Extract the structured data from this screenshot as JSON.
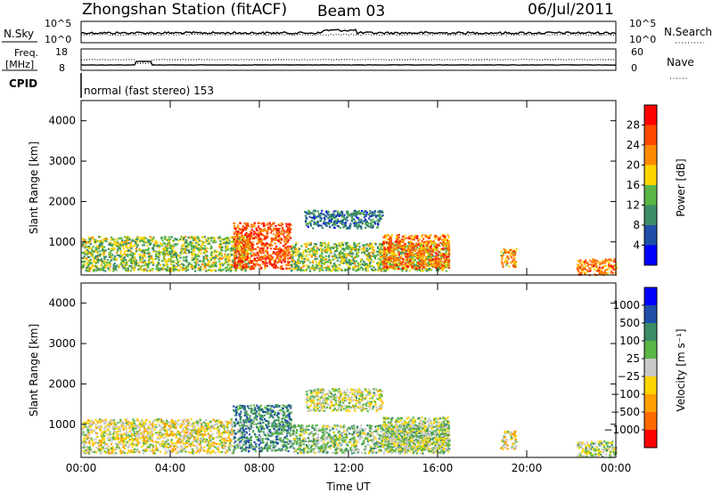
{
  "header": {
    "station": "Zhongshan Station (fitACF)",
    "beam": "Beam 03",
    "date": "06/Jul/2011"
  },
  "top_panels": {
    "nsky_label": "N.Sky",
    "nsky_ticks": [
      "10^5",
      "10^0"
    ],
    "nsearch_label": "N.Search",
    "nsearch_ticks": [
      "10^5",
      "10^0"
    ],
    "freq_label": "Freq.",
    "freq_unit": "[MHz]",
    "freq_ticks": [
      "18",
      "8"
    ],
    "nave_label": "Nave",
    "nave_ticks": [
      "60",
      "0"
    ],
    "cpid_label": "CPID",
    "cpid_text": "normal (fast stereo) 153"
  },
  "colors": {
    "power_scale": [
      "#0000ff",
      "#1f4fa8",
      "#3c8c68",
      "#5ab646",
      "#ffd400",
      "#ff8c00",
      "#ff4a00",
      "#ff0000"
    ],
    "velocity_scale": [
      "#ff0000",
      "#ff6a00",
      "#ffa000",
      "#ffd400",
      "#c8c8c8",
      "#5ab646",
      "#3c8c68",
      "#1f4fa8",
      "#0000ff"
    ]
  },
  "chart_data": [
    {
      "type": "heatmap",
      "name": "power",
      "ylabel": "Slant Range [km]",
      "yticks": [
        "4000",
        "3000",
        "2000",
        "1000"
      ],
      "xticks": [
        "00:00",
        "04:00",
        "08:00",
        "12:00",
        "16:00",
        "20:00",
        "00:00"
      ],
      "x_range_hours": [
        0,
        24
      ],
      "y_range_km": [
        180,
        4500
      ],
      "colorbar": {
        "label": "Power [dB]",
        "ticks": [
          "28",
          "24",
          "20",
          "16",
          "12",
          "8",
          "4"
        ],
        "range": [
          0,
          30
        ]
      },
      "echo_regions": [
        {
          "t_start": 0.0,
          "t_end": 7.6,
          "r_min": 300,
          "r_max": 1150,
          "level": 14
        },
        {
          "t_start": 6.8,
          "t_end": 9.4,
          "r_min": 350,
          "r_max": 1500,
          "level": 24
        },
        {
          "t_start": 9.4,
          "t_end": 16.5,
          "r_min": 300,
          "r_max": 1000,
          "level": 14
        },
        {
          "t_start": 10.0,
          "t_end": 13.5,
          "r_min": 1350,
          "r_max": 1800,
          "level": 8
        },
        {
          "t_start": 13.5,
          "t_end": 16.5,
          "r_min": 350,
          "r_max": 1200,
          "level": 22
        },
        {
          "t_start": 18.8,
          "t_end": 19.5,
          "r_min": 400,
          "r_max": 850,
          "level": 20
        },
        {
          "t_start": 22.2,
          "t_end": 24.0,
          "r_min": 200,
          "r_max": 600,
          "level": 22
        }
      ]
    },
    {
      "type": "heatmap",
      "name": "velocity",
      "ylabel": "Slant Range [km]",
      "yticks": [
        "4000",
        "3000",
        "2000",
        "1000"
      ],
      "xticks": [
        "00:00",
        "04:00",
        "08:00",
        "12:00",
        "16:00",
        "20:00",
        "00:00"
      ],
      "xlabel": "Time UT",
      "x_range_hours": [
        0,
        24
      ],
      "y_range_km": [
        180,
        4500
      ],
      "colorbar": {
        "label": "Velocity [m s⁻¹]",
        "ticks": [
          "1000",
          "500",
          "100",
          "25",
          "−25",
          "−100",
          "−500",
          "−1000"
        ],
        "range": [
          -1000,
          1000
        ]
      },
      "echo_regions": [
        {
          "t_start": 0.0,
          "t_end": 6.8,
          "r_min": 300,
          "r_max": 1150,
          "level": -100
        },
        {
          "t_start": 6.8,
          "t_end": 9.4,
          "r_min": 350,
          "r_max": 1500,
          "level": 400
        },
        {
          "t_start": 9.4,
          "t_end": 16.5,
          "r_min": 300,
          "r_max": 1000,
          "level": 150
        },
        {
          "t_start": 10.0,
          "t_end": 13.5,
          "r_min": 1350,
          "r_max": 1900,
          "level": 0
        },
        {
          "t_start": 13.5,
          "t_end": 16.5,
          "r_min": 350,
          "r_max": 1200,
          "level": 60
        },
        {
          "t_start": 18.8,
          "t_end": 19.5,
          "r_min": 400,
          "r_max": 850,
          "level": -150
        },
        {
          "t_start": 22.2,
          "t_end": 24.0,
          "r_min": 200,
          "r_max": 600,
          "level": 60
        }
      ]
    }
  ]
}
